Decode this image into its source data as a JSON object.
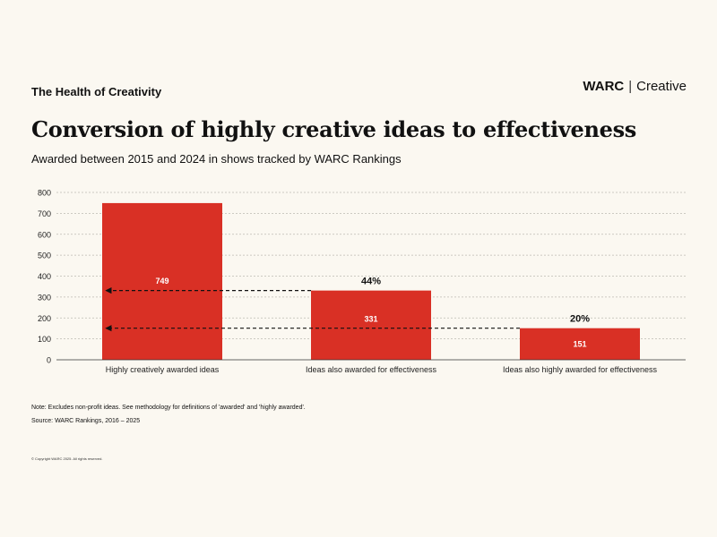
{
  "header": {
    "kicker": "The Health of Creativity",
    "brand_main": "WARC",
    "brand_separator": "|",
    "brand_sub": "Creative"
  },
  "chart_data": {
    "type": "bar",
    "title": "Conversion of highly creative ideas to effectiveness",
    "subtitle": "Awarded between 2015 and 2024 in shows tracked by WARC Rankings",
    "categories": [
      "Highly creatively awarded ideas",
      "Ideas also awarded for effectiveness",
      "Ideas also highly awarded for effectiveness"
    ],
    "values": [
      749,
      331,
      151
    ],
    "value_labels": [
      "749",
      "331",
      "151"
    ],
    "conversion_labels": [
      "",
      "44%",
      "20%"
    ],
    "ylim": [
      0,
      800
    ],
    "yticks": [
      0,
      100,
      200,
      300,
      400,
      500,
      600,
      700,
      800
    ],
    "xlabel": "",
    "ylabel": "",
    "grid": true,
    "bar_color": "#d93025",
    "annotations": [
      {
        "type": "dashed-arrow",
        "from_category": 1,
        "to_category": 0,
        "level": 331
      },
      {
        "type": "dashed-arrow",
        "from_category": 2,
        "to_category": 0,
        "level": 151
      }
    ]
  },
  "footer": {
    "note": "Note: Excludes non-profit ideas. See methodology for definitions of 'awarded' and 'highly awarded'.",
    "source": "Source: WARC Rankings, 2016 – 2025",
    "copyright": "© Copyright WARC 2025. All rights reserved."
  }
}
